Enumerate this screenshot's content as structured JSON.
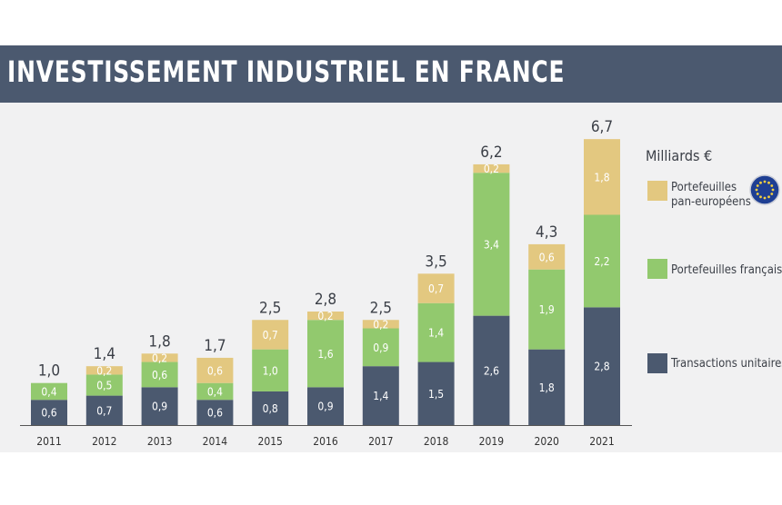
{
  "header": {
    "title": "INVESTISSEMENT INDUSTRIEL EN FRANCE"
  },
  "chart_data": {
    "type": "bar",
    "stacked": true,
    "unit_label": "Milliards €",
    "categories": [
      "2011",
      "2012",
      "2013",
      "2014",
      "2015",
      "2016",
      "2017",
      "2018",
      "2019",
      "2020",
      "2021"
    ],
    "series": [
      {
        "name": "Transactions unitaires",
        "color": "#4b596f",
        "values": [
          0.6,
          0.7,
          0.9,
          0.6,
          0.8,
          0.9,
          1.4,
          1.5,
          2.6,
          1.8,
          2.8
        ],
        "labels": [
          "0,6",
          "0,7",
          "0,9",
          "0,6",
          "0,8",
          "0,9",
          "1,4",
          "1,5",
          "2,6",
          "1,8",
          "2,8"
        ]
      },
      {
        "name": "Portefeuilles français",
        "color": "#92c96e",
        "values": [
          0.4,
          0.5,
          0.6,
          0.4,
          1.0,
          1.6,
          0.9,
          1.4,
          3.4,
          1.9,
          2.2
        ],
        "labels": [
          "0,4",
          "0,5",
          "0,6",
          "0,4",
          "1,0",
          "1,6",
          "0,9",
          "1,4",
          "3,4",
          "1,9",
          "2,2"
        ]
      },
      {
        "name": "Portefeuilles pan-européens",
        "legend_lines": [
          "Portefeuilles",
          "pan-européens"
        ],
        "color": "#e3c880",
        "values": [
          0.0,
          0.2,
          0.2,
          0.6,
          0.7,
          0.2,
          0.2,
          0.7,
          0.2,
          0.6,
          1.8
        ],
        "labels": [
          "",
          "0,2",
          "0,2",
          "0,6",
          "0,7",
          "0,2",
          "0,2",
          "0,7",
          "0,2",
          "0,6",
          "1,8"
        ]
      }
    ],
    "totals": [
      1.0,
      1.4,
      1.8,
      1.7,
      2.5,
      2.8,
      2.5,
      3.5,
      6.2,
      4.3,
      6.7
    ],
    "total_labels": [
      "1,0",
      "1,4",
      "1,8",
      "1,7",
      "2,5",
      "2,8",
      "2,5",
      "3,5",
      "6,2",
      "4,3",
      "6,7"
    ],
    "ylim": [
      0,
      6.7
    ],
    "legend_position": "right",
    "eu_flag_icon": "eu-flag-icon"
  }
}
